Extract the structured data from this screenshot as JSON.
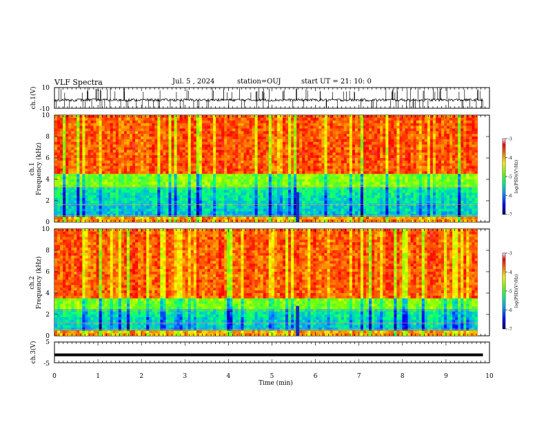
{
  "header": {
    "title": "VLF Spectra",
    "date": "Jul. 5 , 2024",
    "station": "station=OUJ",
    "start": "start UT = 21: 10: 0"
  },
  "chart_data": [
    {
      "type": "line",
      "panel": "ch1-waveform",
      "ylabel": "ch.1(V)",
      "ylim": [
        -10,
        10
      ],
      "ytick_labels": [
        "10",
        "-10"
      ],
      "xlim": [
        0,
        10
      ],
      "description_values": "noisy waveform centered near -2 V with impulsive spikes"
    },
    {
      "type": "heatmap",
      "panel": "ch1-spectrogram",
      "ylabel_top": "ch.1",
      "ylabel": "Frequency (kHz)",
      "ylim": [
        0,
        10
      ],
      "yticks": [
        "0",
        "2",
        "4",
        "6",
        "8",
        "10"
      ],
      "xlim": [
        0,
        9.85
      ],
      "colorbar": {
        "label": "log(PSD)(V²/Hz)",
        "range": [
          -7,
          -3
        ],
        "ticks": [
          "-3",
          "-4",
          "-5",
          "-6",
          "-7"
        ]
      }
    },
    {
      "type": "heatmap",
      "panel": "ch2-spectrogram",
      "ylabel_top": "ch.2",
      "ylabel": "Frequency (kHz)",
      "ylim": [
        0,
        10
      ],
      "yticks": [
        "0",
        "2",
        "4",
        "6",
        "8",
        "10"
      ],
      "xlim": [
        0,
        9.85
      ],
      "colorbar": {
        "label": "log(PSD)(V²/Hz)",
        "range": [
          -7,
          -3
        ],
        "ticks": [
          "-3",
          "-4",
          "-5",
          "-6",
          "-7"
        ]
      }
    },
    {
      "type": "line",
      "panel": "ch3-waveform",
      "ylabel": "ch.3(V)",
      "ylim": [
        -5,
        5
      ],
      "ytick_labels": [
        "5",
        "-5"
      ],
      "constant_value": -1.2
    }
  ],
  "xaxis": {
    "label": "Time (min)",
    "ticks": [
      "0",
      "1",
      "2",
      "3",
      "4",
      "5",
      "6",
      "7",
      "8",
      "9",
      "10"
    ]
  },
  "colors": {
    "axis": "#000000",
    "background": "#ffffff"
  }
}
